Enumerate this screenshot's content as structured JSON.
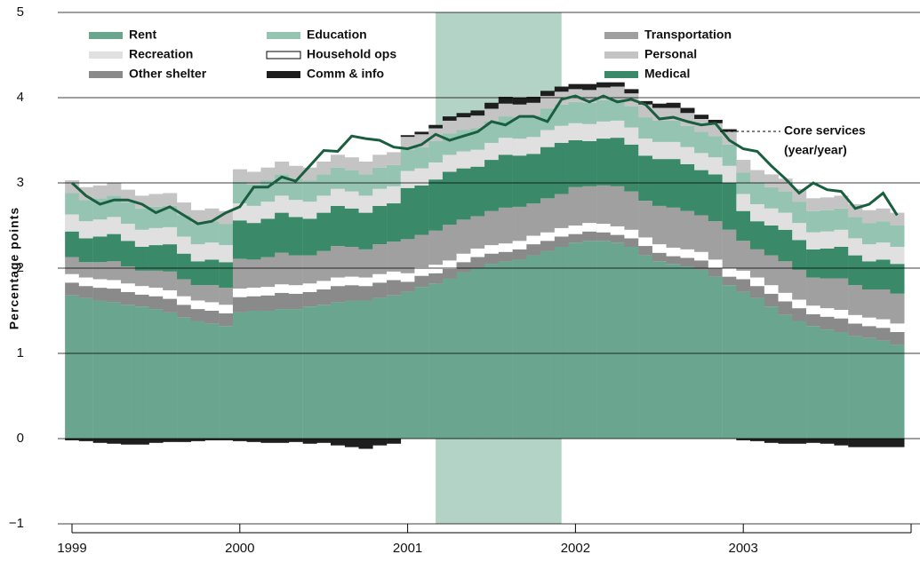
{
  "chart_data": {
    "type": "stacked-bar-line",
    "ylabel": "Percentage points",
    "xlim": [
      1999,
      2004
    ],
    "xticks": [
      1999,
      2000,
      2001,
      2002,
      2003
    ],
    "ylim": [
      -1,
      5
    ],
    "yticks": [
      {
        "value": -1,
        "label": "−1"
      },
      0,
      1,
      2,
      3,
      4,
      5
    ],
    "grid": true,
    "shaded_region": [
      2001.167,
      2001.917
    ],
    "shaded_color": "#b3d3c6",
    "x": [
      1999,
      1999.083,
      1999.167,
      1999.25,
      1999.333,
      1999.417,
      1999.5,
      1999.583,
      1999.667,
      1999.75,
      1999.833,
      1999.917,
      2000,
      2000.083,
      2000.167,
      2000.25,
      2000.333,
      2000.417,
      2000.5,
      2000.583,
      2000.667,
      2000.75,
      2000.833,
      2000.917,
      2001,
      2001.083,
      2001.167,
      2001.25,
      2001.333,
      2001.417,
      2001.5,
      2001.583,
      2001.667,
      2001.75,
      2001.833,
      2001.917,
      2002,
      2002.083,
      2002.167,
      2002.25,
      2002.333,
      2002.417,
      2002.5,
      2002.583,
      2002.667,
      2002.75,
      2002.833,
      2002.917,
      2003,
      2003.083,
      2003.167,
      2003.25,
      2003.333,
      2003.417,
      2003.5,
      2003.583,
      2003.667,
      2003.75,
      2003.833,
      2003.917
    ],
    "series": [
      {
        "name": "Rent",
        "color": "#6aa58f",
        "values": [
          1.68,
          1.65,
          1.62,
          1.6,
          1.57,
          1.55,
          1.52,
          1.48,
          1.42,
          1.38,
          1.35,
          1.32,
          1.48,
          1.5,
          1.5,
          1.52,
          1.52,
          1.55,
          1.57,
          1.6,
          1.62,
          1.62,
          1.65,
          1.68,
          1.72,
          1.78,
          1.82,
          1.88,
          1.95,
          2,
          2.05,
          2.08,
          2.1,
          2.15,
          2.2,
          2.25,
          2.3,
          2.32,
          2.32,
          2.3,
          2.25,
          2.15,
          2.08,
          2.05,
          2.02,
          1.98,
          1.9,
          1.8,
          1.72,
          1.65,
          1.55,
          1.45,
          1.38,
          1.32,
          1.28,
          1.25,
          1.2,
          1.18,
          1.15,
          1.1
        ]
      },
      {
        "name": "Other shelter",
        "color": "#8a8a8a",
        "values": [
          0.15,
          0.14,
          0.15,
          0.16,
          0.15,
          0.14,
          0.15,
          0.16,
          0.15,
          0.14,
          0.15,
          0.15,
          0.18,
          0.17,
          0.18,
          0.19,
          0.18,
          0.17,
          0.18,
          0.19,
          0.18,
          0.17,
          0.18,
          0.18,
          0.12,
          0.13,
          0.12,
          0.11,
          0.12,
          0.13,
          0.12,
          0.11,
          0.12,
          0.13,
          0.12,
          0.12,
          0.1,
          0.11,
          0.1,
          0.09,
          0.1,
          0.11,
          0.1,
          0.09,
          0.1,
          0.11,
          0.1,
          0.1,
          0.15,
          0.14,
          0.15,
          0.16,
          0.15,
          0.14,
          0.15,
          0.16,
          0.15,
          0.14,
          0.15,
          0.15
        ]
      },
      {
        "name": "Household ops",
        "color": "#ffffff",
        "values": [
          0.1,
          0.1,
          0.1,
          0.1,
          0.1,
          0.1,
          0.1,
          0.1,
          0.1,
          0.1,
          0.1,
          0.1,
          0.1,
          0.1,
          0.1,
          0.1,
          0.1,
          0.1,
          0.1,
          0.1,
          0.1,
          0.1,
          0.1,
          0.1,
          0.1,
          0.1,
          0.1,
          0.1,
          0.1,
          0.1,
          0.1,
          0.1,
          0.1,
          0.1,
          0.1,
          0.1,
          0.1,
          0.1,
          0.1,
          0.1,
          0.1,
          0.1,
          0.1,
          0.1,
          0.1,
          0.1,
          0.1,
          0.1,
          0.1,
          0.1,
          0.1,
          0.1,
          0.1,
          0.1,
          0.1,
          0.1,
          0.1,
          0.1,
          0.1,
          0.1
        ]
      },
      {
        "name": "Transportation",
        "color": "#a0a0a0",
        "values": [
          0.2,
          0.18,
          0.2,
          0.22,
          0.2,
          0.18,
          0.2,
          0.22,
          0.2,
          0.18,
          0.2,
          0.2,
          0.35,
          0.33,
          0.35,
          0.37,
          0.35,
          0.33,
          0.35,
          0.37,
          0.35,
          0.33,
          0.35,
          0.35,
          0.4,
          0.38,
          0.4,
          0.42,
          0.4,
          0.38,
          0.4,
          0.42,
          0.4,
          0.38,
          0.4,
          0.4,
          0.45,
          0.43,
          0.45,
          0.47,
          0.45,
          0.43,
          0.45,
          0.47,
          0.45,
          0.43,
          0.45,
          0.45,
          0.35,
          0.33,
          0.35,
          0.37,
          0.35,
          0.33,
          0.35,
          0.37,
          0.35,
          0.33,
          0.35,
          0.35
        ]
      },
      {
        "name": "Medical",
        "color": "#3a8a6a",
        "values": [
          0.3,
          0.28,
          0.3,
          0.32,
          0.3,
          0.28,
          0.3,
          0.32,
          0.3,
          0.28,
          0.3,
          0.3,
          0.45,
          0.43,
          0.45,
          0.47,
          0.45,
          0.43,
          0.45,
          0.47,
          0.45,
          0.43,
          0.45,
          0.45,
          0.6,
          0.58,
          0.6,
          0.62,
          0.6,
          0.58,
          0.6,
          0.62,
          0.6,
          0.58,
          0.6,
          0.6,
          0.55,
          0.53,
          0.55,
          0.57,
          0.55,
          0.53,
          0.55,
          0.57,
          0.55,
          0.53,
          0.55,
          0.55,
          0.35,
          0.33,
          0.35,
          0.37,
          0.35,
          0.33,
          0.35,
          0.37,
          0.35,
          0.33,
          0.35,
          0.35
        ]
      },
      {
        "name": "Recreation",
        "color": "#e0e0e0",
        "values": [
          0.2,
          0.2,
          0.2,
          0.2,
          0.2,
          0.2,
          0.2,
          0.2,
          0.2,
          0.2,
          0.2,
          0.2,
          0.2,
          0.2,
          0.2,
          0.2,
          0.2,
          0.2,
          0.2,
          0.2,
          0.2,
          0.2,
          0.2,
          0.2,
          0.2,
          0.2,
          0.2,
          0.2,
          0.2,
          0.2,
          0.2,
          0.2,
          0.2,
          0.2,
          0.2,
          0.2,
          0.2,
          0.2,
          0.2,
          0.2,
          0.2,
          0.2,
          0.2,
          0.2,
          0.2,
          0.2,
          0.2,
          0.2,
          0.2,
          0.2,
          0.2,
          0.2,
          0.2,
          0.2,
          0.2,
          0.2,
          0.2,
          0.2,
          0.2,
          0.2
        ]
      },
      {
        "name": "Education",
        "color": "#96c4b2",
        "values": [
          0.25,
          0.25,
          0.25,
          0.25,
          0.25,
          0.25,
          0.25,
          0.25,
          0.25,
          0.25,
          0.25,
          0.25,
          0.25,
          0.25,
          0.25,
          0.25,
          0.25,
          0.25,
          0.25,
          0.25,
          0.25,
          0.25,
          0.25,
          0.25,
          0.25,
          0.25,
          0.25,
          0.25,
          0.25,
          0.25,
          0.25,
          0.25,
          0.25,
          0.25,
          0.25,
          0.25,
          0.25,
          0.25,
          0.25,
          0.25,
          0.25,
          0.25,
          0.25,
          0.25,
          0.25,
          0.25,
          0.25,
          0.25,
          0.25,
          0.25,
          0.25,
          0.25,
          0.25,
          0.25,
          0.25,
          0.25,
          0.25,
          0.25,
          0.25,
          0.25
        ]
      },
      {
        "name": "Personal",
        "color": "#c4c4c4",
        "values": [
          0.15,
          0.15,
          0.15,
          0.15,
          0.15,
          0.15,
          0.15,
          0.15,
          0.15,
          0.15,
          0.15,
          0.15,
          0.15,
          0.15,
          0.15,
          0.15,
          0.15,
          0.15,
          0.15,
          0.15,
          0.15,
          0.15,
          0.15,
          0.15,
          0.15,
          0.15,
          0.15,
          0.15,
          0.15,
          0.15,
          0.15,
          0.15,
          0.15,
          0.15,
          0.15,
          0.15,
          0.15,
          0.15,
          0.15,
          0.15,
          0.15,
          0.15,
          0.15,
          0.15,
          0.15,
          0.15,
          0.15,
          0.15,
          0.15,
          0.15,
          0.15,
          0.15,
          0.15,
          0.15,
          0.15,
          0.15,
          0.15,
          0.15,
          0.15,
          0.15
        ]
      },
      {
        "name": "Comm & info",
        "color": "#1e1e1e",
        "values": [
          -0.02,
          -0.03,
          -0.05,
          -0.06,
          -0.07,
          -0.07,
          -0.05,
          -0.04,
          -0.04,
          -0.03,
          -0.02,
          -0.02,
          -0.03,
          -0.04,
          -0.05,
          -0.05,
          -0.04,
          -0.06,
          -0.05,
          -0.08,
          -0.1,
          -0.12,
          -0.08,
          -0.06,
          0.02,
          0.03,
          0.04,
          0.05,
          0.05,
          0.06,
          0.07,
          0.08,
          0.08,
          0.07,
          0.06,
          0.06,
          0.06,
          0.07,
          0.06,
          0.05,
          0.05,
          0.04,
          0.05,
          0.06,
          0.06,
          0.05,
          0.04,
          0.03,
          -0.02,
          -0.03,
          -0.05,
          -0.06,
          -0.06,
          -0.05,
          -0.06,
          -0.08,
          -0.1,
          -0.1,
          -0.1,
          -0.1
        ]
      }
    ],
    "line": {
      "color": "#1a5e40",
      "values": [
        3.0,
        2.85,
        2.75,
        2.8,
        2.8,
        2.75,
        2.65,
        2.72,
        2.62,
        2.52,
        2.55,
        2.65,
        2.72,
        2.95,
        2.95,
        3.07,
        3.02,
        3.2,
        3.38,
        3.37,
        3.55,
        3.52,
        3.5,
        3.42,
        3.4,
        3.45,
        3.57,
        3.5,
        3.55,
        3.6,
        3.72,
        3.68,
        3.78,
        3.78,
        3.72,
        3.98,
        4.02,
        3.95,
        4.02,
        3.95,
        3.98,
        3.92,
        3.75,
        3.77,
        3.72,
        3.68,
        3.7,
        3.5,
        3.4,
        3.37,
        3.2,
        3.05,
        2.88,
        3.0,
        2.92,
        2.9,
        2.7,
        2.75,
        2.88,
        2.62
      ]
    },
    "annotation": [
      "Core services",
      "(year/year)"
    ]
  }
}
